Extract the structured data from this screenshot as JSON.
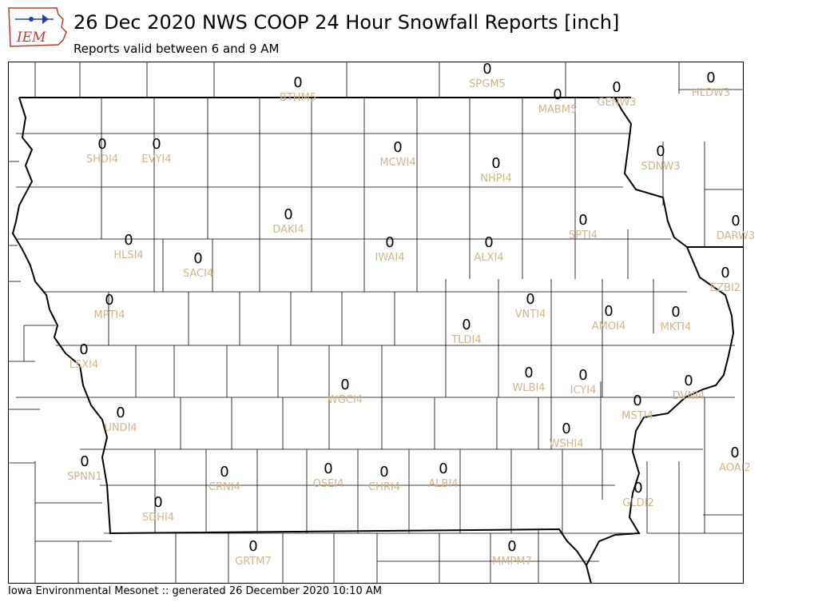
{
  "header": {
    "title": "26 Dec 2020 NWS COOP 24 Hour Snowfall Reports [inch]",
    "subtitle": "Reports valid between 6 and 9 AM",
    "logo_text": "IEM"
  },
  "footer": {
    "text": "Iowa Environmental Mesonet :: generated 26 December 2020 10:10 AM"
  },
  "colors": {
    "value": "#000000",
    "station_id": "#d2b48c",
    "logo": "#c0392b"
  },
  "stations": [
    {
      "id": "BTHM5",
      "value": "0"
    },
    {
      "id": "SPGM5",
      "value": "0"
    },
    {
      "id": "MABM5",
      "value": "0"
    },
    {
      "id": "GENW3",
      "value": "0"
    },
    {
      "id": "HLDW3",
      "value": "0"
    },
    {
      "id": "SHDI4",
      "value": "0"
    },
    {
      "id": "EVYI4",
      "value": "0"
    },
    {
      "id": "MCWI4",
      "value": "0"
    },
    {
      "id": "NHPI4",
      "value": "0"
    },
    {
      "id": "SDNW3",
      "value": "0"
    },
    {
      "id": "DAKI4",
      "value": "0"
    },
    {
      "id": "SPTI4",
      "value": "0"
    },
    {
      "id": "DARW3",
      "value": "0"
    },
    {
      "id": "HLSI4",
      "value": "0"
    },
    {
      "id": "IWAI4",
      "value": "0"
    },
    {
      "id": "ALXI4",
      "value": "0"
    },
    {
      "id": "SACI4",
      "value": "0"
    },
    {
      "id": "EZBI2",
      "value": "0"
    },
    {
      "id": "MPTI4",
      "value": "0"
    },
    {
      "id": "VNTI4",
      "value": "0"
    },
    {
      "id": "AMOI4",
      "value": "0"
    },
    {
      "id": "MKTI4",
      "value": "0"
    },
    {
      "id": "TLDI4",
      "value": "0"
    },
    {
      "id": "LSXI4",
      "value": "0"
    },
    {
      "id": "WLBI4",
      "value": "0"
    },
    {
      "id": "ICYI4",
      "value": "0"
    },
    {
      "id": "WGCI4",
      "value": "0"
    },
    {
      "id": "DVNI4",
      "value": "0"
    },
    {
      "id": "UNDI4",
      "value": "0"
    },
    {
      "id": "MSTI4",
      "value": "0"
    },
    {
      "id": "WSHI4",
      "value": "0"
    },
    {
      "id": "AOAI2",
      "value": "0"
    },
    {
      "id": "SPNN1",
      "value": "0"
    },
    {
      "id": "CRNI4",
      "value": "0"
    },
    {
      "id": "OSEI4",
      "value": "0"
    },
    {
      "id": "CHRI4",
      "value": "0"
    },
    {
      "id": "ALBI4",
      "value": "0"
    },
    {
      "id": "GLDI2",
      "value": "0"
    },
    {
      "id": "SDHI4",
      "value": "0"
    },
    {
      "id": "GRTM7",
      "value": "0"
    },
    {
      "id": "MMPM7",
      "value": "0"
    }
  ]
}
